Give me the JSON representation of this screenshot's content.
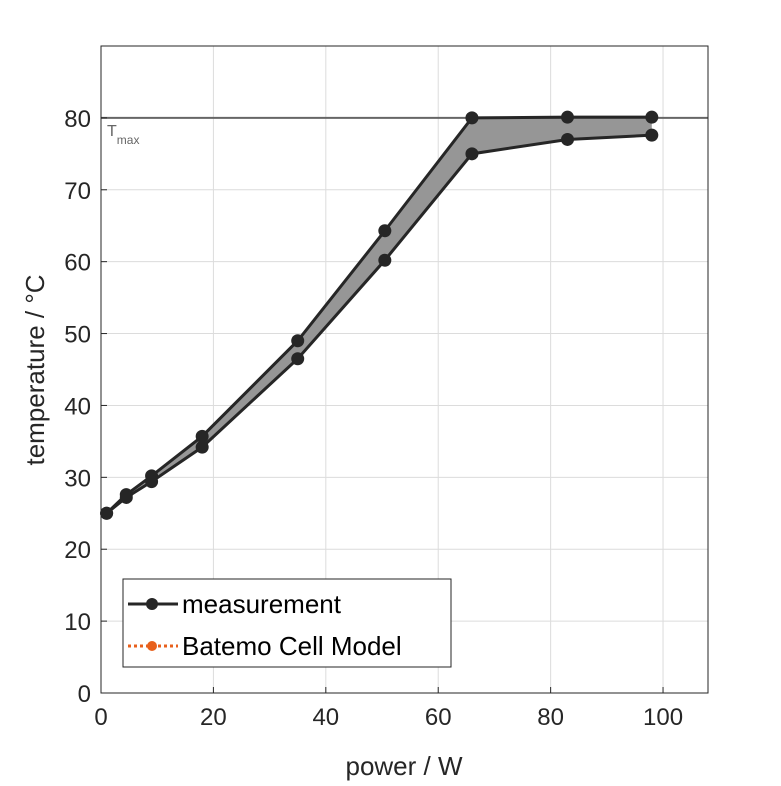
{
  "chart_data": {
    "type": "line",
    "title": "",
    "xlabel": "power / W",
    "ylabel": "temperature / °C",
    "xlim": [
      0,
      108
    ],
    "ylim": [
      0,
      90
    ],
    "xticks": [
      0,
      20,
      40,
      60,
      80,
      100
    ],
    "yticks": [
      0,
      10,
      20,
      30,
      40,
      50,
      60,
      70,
      80
    ],
    "grid": true,
    "reference_line": {
      "y": 80,
      "label_main": "T",
      "label_sub": "max",
      "color": "#666666"
    },
    "series": [
      {
        "name": "measurement (upper)",
        "x": [
          1,
          4.5,
          9,
          18,
          35,
          50.5,
          66,
          83,
          98
        ],
        "y": [
          25,
          27.6,
          30.2,
          35.7,
          49,
          64.3,
          80,
          80.1,
          80.1
        ],
        "color": "#262626"
      },
      {
        "name": "measurement (lower)",
        "x": [
          1,
          4.5,
          9,
          18,
          35,
          50.5,
          66,
          83,
          98
        ],
        "y": [
          25,
          27.2,
          29.4,
          34.2,
          46.5,
          60.2,
          75,
          77,
          77.6
        ],
        "color": "#262626"
      }
    ],
    "fill_color": "#969696",
    "legend": {
      "placement": "bottom-left",
      "entries": [
        {
          "label": "measurement",
          "color": "#262626",
          "style": "solid"
        },
        {
          "label": "Batemo Cell Model",
          "color": "#e8601c",
          "style": "dotted"
        }
      ]
    }
  }
}
